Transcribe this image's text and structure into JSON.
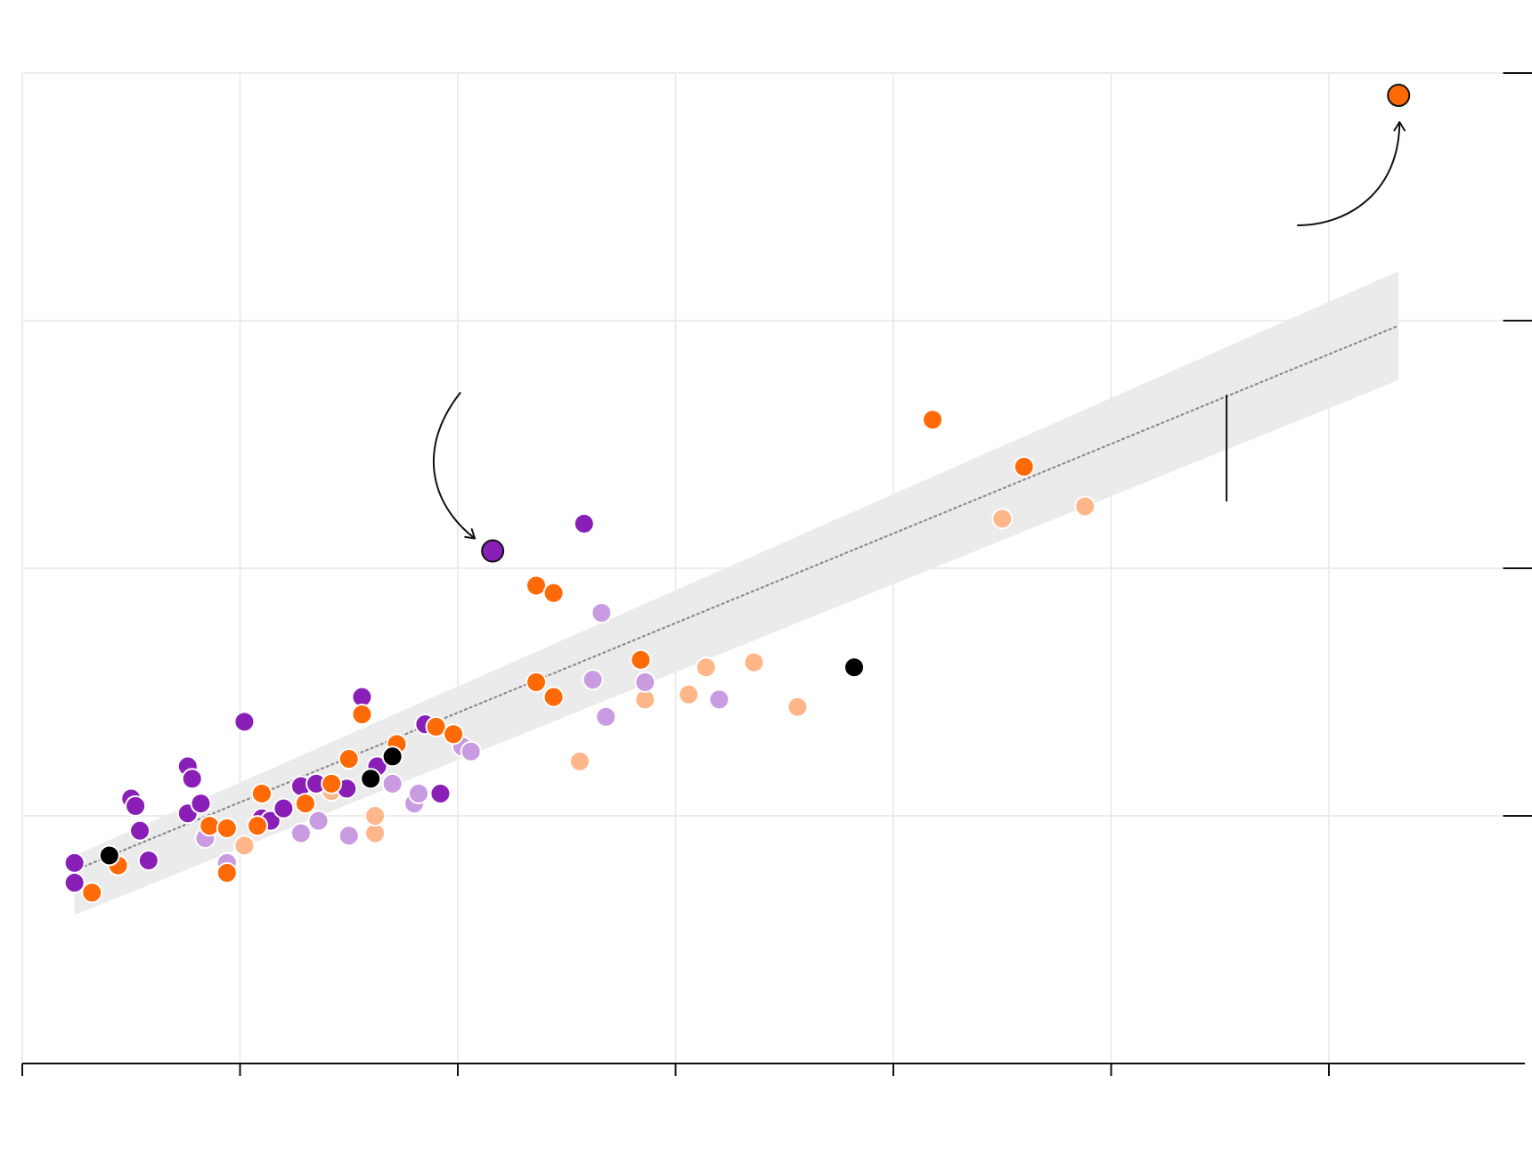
{
  "chart_data": {
    "type": "scatter",
    "title": "",
    "xlabel": "",
    "ylabel": "",
    "x_range": [
      0,
      6.9
    ],
    "y_range": [
      0,
      4
    ],
    "x_gridlines": [
      0,
      1,
      2,
      3,
      4,
      5,
      6
    ],
    "y_gridlines": [
      1,
      2,
      3,
      4
    ],
    "grid": true,
    "legend": "none",
    "colors": {
      "dark_purple": "#8a1fb8",
      "light_purple": "#c99be0",
      "orange": "#ff6a06",
      "light_orange": "#ffb78a",
      "black": "#000000",
      "band": "#ebebeb",
      "trend": "#8c8c8c",
      "grid": "#ececec",
      "axis": "#111111"
    },
    "trend_line": {
      "x": [
        0.24,
        6.32
      ],
      "y": [
        0.78,
        2.98
      ]
    },
    "confidence_band": {
      "x": [
        0.24,
        6.32
      ],
      "upper": [
        0.84,
        3.2
      ],
      "lower": [
        0.6,
        2.76
      ]
    },
    "error_bar": {
      "x": 5.53,
      "y_low": 2.27,
      "y_high": 2.7
    },
    "annotations": [
      {
        "target": "highlighted-purple",
        "arrow": "curved-from-above-left"
      },
      {
        "target": "highlighted-orange",
        "arrow": "curved-from-below-left"
      }
    ],
    "series": [
      {
        "group": "dark_purple",
        "points": [
          [
            0.24,
            0.73
          ],
          [
            0.24,
            0.81
          ],
          [
            0.5,
            1.07
          ],
          [
            0.52,
            1.04
          ],
          [
            0.54,
            0.94
          ],
          [
            0.58,
            0.82
          ],
          [
            0.76,
            1.2
          ],
          [
            0.78,
            1.15
          ],
          [
            0.76,
            1.01
          ],
          [
            0.82,
            1.05
          ],
          [
            1.02,
            1.38
          ],
          [
            1.1,
            0.99
          ],
          [
            1.14,
            0.98
          ],
          [
            1.2,
            1.03
          ],
          [
            1.28,
            1.12
          ],
          [
            1.35,
            1.13
          ],
          [
            1.49,
            1.11
          ],
          [
            1.56,
            1.48
          ],
          [
            1.63,
            1.2
          ],
          [
            1.85,
            1.37
          ],
          [
            1.92,
            1.09
          ],
          [
            2.16,
            2.07
          ],
          [
            2.58,
            2.18
          ]
        ]
      },
      {
        "group": "light_purple",
        "points": [
          [
            0.84,
            0.91
          ],
          [
            0.94,
            0.81
          ],
          [
            1.28,
            0.93
          ],
          [
            1.36,
            0.98
          ],
          [
            1.5,
            0.92
          ],
          [
            1.7,
            1.13
          ],
          [
            1.8,
            1.05
          ],
          [
            1.82,
            1.09
          ],
          [
            2.02,
            1.28
          ],
          [
            2.06,
            1.26
          ],
          [
            2.62,
            1.55
          ],
          [
            2.66,
            1.82
          ],
          [
            2.68,
            1.4
          ],
          [
            2.86,
            1.54
          ],
          [
            3.2,
            1.47
          ]
        ]
      },
      {
        "group": "orange",
        "points": [
          [
            0.32,
            0.69
          ],
          [
            0.44,
            0.8
          ],
          [
            0.86,
            0.96
          ],
          [
            0.94,
            0.95
          ],
          [
            0.94,
            0.77
          ],
          [
            1.08,
            0.96
          ],
          [
            1.1,
            1.09
          ],
          [
            1.3,
            1.05
          ],
          [
            1.42,
            1.13
          ],
          [
            1.5,
            1.23
          ],
          [
            1.56,
            1.41
          ],
          [
            1.72,
            1.29
          ],
          [
            1.9,
            1.36
          ],
          [
            1.98,
            1.33
          ],
          [
            2.36,
            1.93
          ],
          [
            2.44,
            1.9
          ],
          [
            2.36,
            1.54
          ],
          [
            2.44,
            1.48
          ],
          [
            2.84,
            1.63
          ],
          [
            4.18,
            2.6
          ],
          [
            4.6,
            2.41
          ],
          [
            6.32,
            3.91
          ]
        ]
      },
      {
        "group": "light_orange",
        "points": [
          [
            1.02,
            0.88
          ],
          [
            1.42,
            1.1
          ],
          [
            1.62,
            0.93
          ],
          [
            1.62,
            1.0
          ],
          [
            2.56,
            1.22
          ],
          [
            2.86,
            1.47
          ],
          [
            3.06,
            1.49
          ],
          [
            3.14,
            1.6
          ],
          [
            3.36,
            1.62
          ],
          [
            3.56,
            1.44
          ],
          [
            4.5,
            2.2
          ],
          [
            4.88,
            2.25
          ]
        ]
      },
      {
        "group": "black",
        "points": [
          [
            0.4,
            0.84
          ],
          [
            1.6,
            1.15
          ],
          [
            1.7,
            1.24
          ],
          [
            3.82,
            1.6
          ]
        ]
      },
      {
        "group": "highlighted-purple",
        "points": [
          [
            2.16,
            2.07
          ]
        ]
      },
      {
        "group": "highlighted-orange",
        "points": [
          [
            6.32,
            3.91
          ]
        ]
      }
    ]
  }
}
